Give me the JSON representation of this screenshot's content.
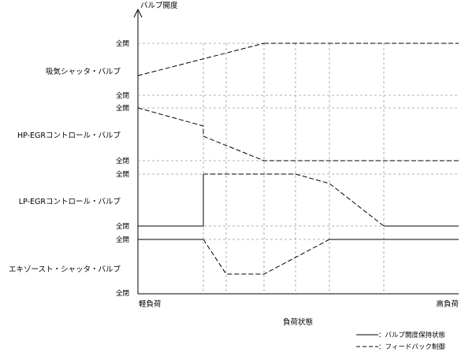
{
  "y_axis_label": "バルブ開度",
  "x_axis_label": "負荷状態",
  "x_start_label": "軽負荷",
  "x_end_label": "高負荷",
  "open_label": "全開",
  "closed_label": "全閉",
  "valves": [
    {
      "label": "吸気シャッタ・バルブ"
    },
    {
      "label": "HP-EGRコントロール・バルブ"
    },
    {
      "label": "LP-EGRコントロール・バルブ"
    },
    {
      "label": "エキゾースト・シャッタ・バルブ"
    }
  ],
  "legend": {
    "hold": "：バルブ開度保持状態",
    "feedback": "：フィードバック制御"
  }
}
